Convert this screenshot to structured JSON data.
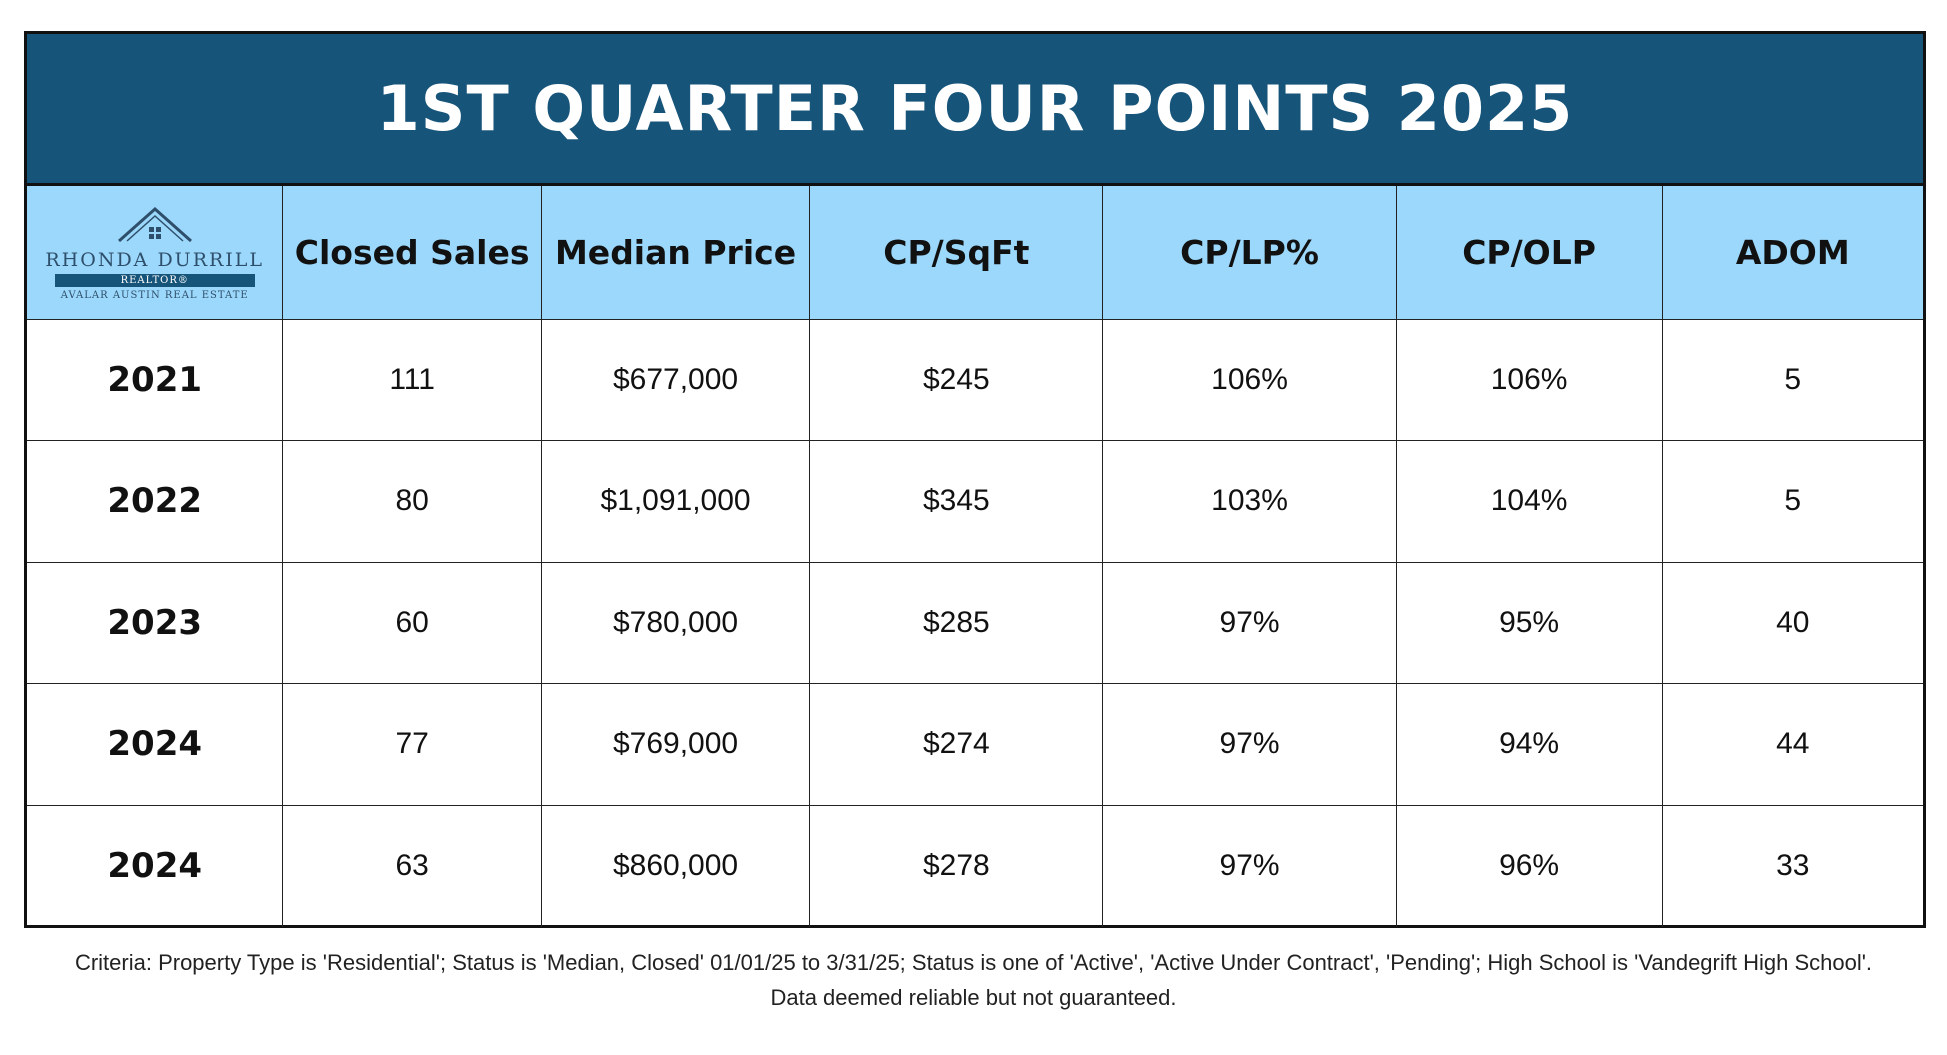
{
  "title": "1ST QUARTER FOUR POINTS 2025",
  "logo": {
    "name": "RHONDA DURRILL",
    "band": "REALTOR®",
    "sub": "AVALAR AUSTIN REAL ESTATE",
    "icon": "house-logo-icon"
  },
  "chart_data": {
    "type": "table",
    "columns": [
      "Closed Sales",
      "Median Price",
      "CP/SqFt",
      "CP/LP%",
      "CP/OLP",
      "ADOM"
    ],
    "rows": [
      {
        "year": "2021",
        "cells": [
          "111",
          "$677,000",
          "$245",
          "106%",
          "106%",
          "5"
        ]
      },
      {
        "year": "2022",
        "cells": [
          "80",
          "$1,091,000",
          "$345",
          "103%",
          "104%",
          "5"
        ]
      },
      {
        "year": "2023",
        "cells": [
          "60",
          "$780,000",
          "$285",
          "97%",
          "95%",
          "40"
        ]
      },
      {
        "year": "2024",
        "cells": [
          "77",
          "$769,000",
          "$274",
          "97%",
          "94%",
          "44"
        ]
      },
      {
        "year": "2024",
        "cells": [
          "63",
          "$860,000",
          "$278",
          "97%",
          "96%",
          "33"
        ]
      }
    ]
  },
  "footnote": "Criteria:  Property Type is 'Residential'; Status is 'Median, Closed' 01/01/25 to 3/31/25; Status is one of 'Active', 'Active Under Contract', 'Pending'; High School is 'Vandegrift High School'. Data deemed reliable but not guaranteed.",
  "colors": {
    "title_bg": "#17547a",
    "header_bg": "#9cd8fb",
    "border": "#111111"
  }
}
